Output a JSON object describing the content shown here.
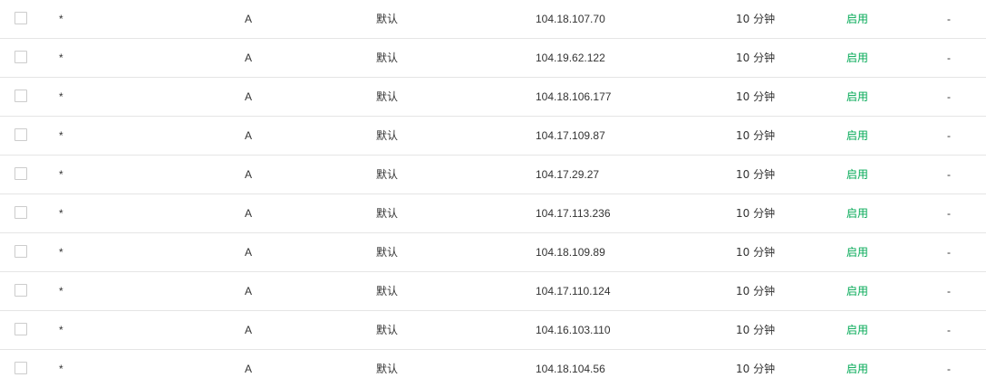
{
  "records": [
    {
      "host": "*",
      "type": "A",
      "line": "默认",
      "value": "104.18.107.70",
      "ttl": "10 分钟",
      "status": "启用",
      "remark": "-"
    },
    {
      "host": "*",
      "type": "A",
      "line": "默认",
      "value": "104.19.62.122",
      "ttl": "10 分钟",
      "status": "启用",
      "remark": "-"
    },
    {
      "host": "*",
      "type": "A",
      "line": "默认",
      "value": "104.18.106.177",
      "ttl": "10 分钟",
      "status": "启用",
      "remark": "-"
    },
    {
      "host": "*",
      "type": "A",
      "line": "默认",
      "value": "104.17.109.87",
      "ttl": "10 分钟",
      "status": "启用",
      "remark": "-"
    },
    {
      "host": "*",
      "type": "A",
      "line": "默认",
      "value": "104.17.29.27",
      "ttl": "10 分钟",
      "status": "启用",
      "remark": "-"
    },
    {
      "host": "*",
      "type": "A",
      "line": "默认",
      "value": "104.17.113.236",
      "ttl": "10 分钟",
      "status": "启用",
      "remark": "-"
    },
    {
      "host": "*",
      "type": "A",
      "line": "默认",
      "value": "104.18.109.89",
      "ttl": "10 分钟",
      "status": "启用",
      "remark": "-"
    },
    {
      "host": "*",
      "type": "A",
      "line": "默认",
      "value": "104.17.110.124",
      "ttl": "10 分钟",
      "status": "启用",
      "remark": "-"
    },
    {
      "host": "*",
      "type": "A",
      "line": "默认",
      "value": "104.16.103.110",
      "ttl": "10 分钟",
      "status": "启用",
      "remark": "-"
    },
    {
      "host": "*",
      "type": "A",
      "line": "默认",
      "value": "104.18.104.56",
      "ttl": "10 分钟",
      "status": "启用",
      "remark": "-"
    }
  ],
  "colors": {
    "status_enabled": "#00a854",
    "row_divider": "#e5e5e5",
    "text": "#333333"
  }
}
